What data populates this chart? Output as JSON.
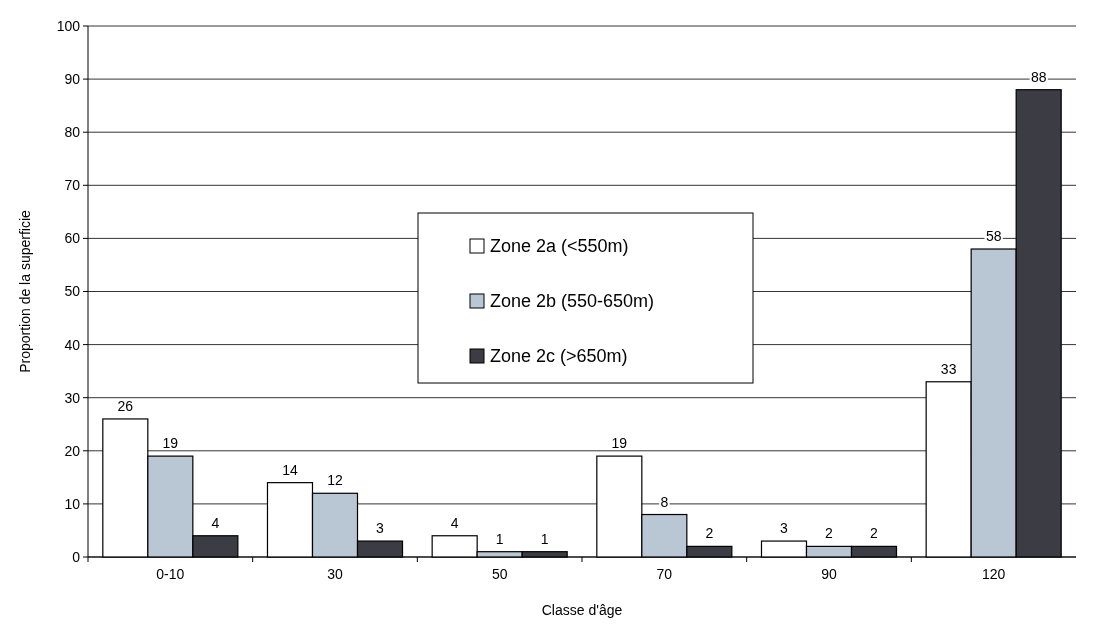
{
  "chart_data": {
    "type": "bar",
    "xlabel": "Classe d'âge",
    "ylabel": "Proportion de la superficie",
    "categories": [
      "0-10",
      "30",
      "50",
      "70",
      "90",
      "120"
    ],
    "series": [
      {
        "name": "Zone 2a (<550m)",
        "color": "#ffffff",
        "values": [
          26,
          14,
          4,
          19,
          3,
          33
        ]
      },
      {
        "name": "Zone 2b (550-650m)",
        "color": "#b9c6d3",
        "values": [
          19,
          12,
          1,
          8,
          2,
          58
        ]
      },
      {
        "name": "Zone 2c (>650m)",
        "color": "#3c3c44",
        "values": [
          4,
          3,
          1,
          2,
          2,
          88
        ]
      }
    ],
    "ylim": [
      0,
      100
    ],
    "yticks": [
      0,
      10,
      20,
      30,
      40,
      50,
      60,
      70,
      80,
      90,
      100
    ],
    "grid": "y",
    "legend": "center",
    "data_labels": true
  }
}
